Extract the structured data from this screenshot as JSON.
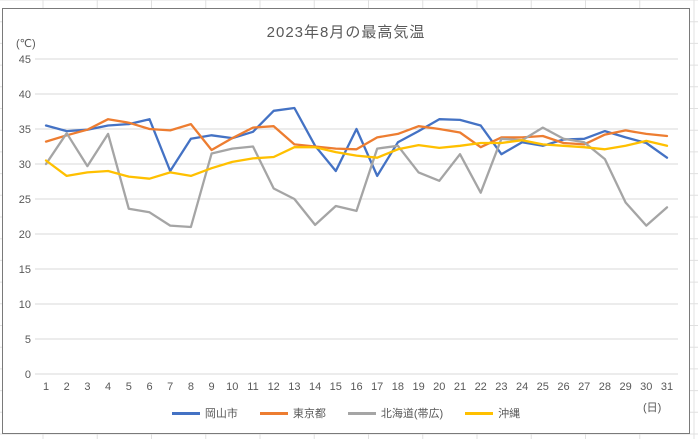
{
  "chart": {
    "title": "2023年8月の最高気温",
    "y_axis_unit": "(℃)",
    "x_axis_unit": "(日)",
    "text_color": "#595959",
    "gridline_color": "#d9d9d9"
  },
  "chart_data": {
    "type": "line",
    "title": "2023年8月の最高気温",
    "ylabel": "(℃)",
    "xlabel": "(日)",
    "ylim": [
      0,
      45
    ],
    "yticks": [
      0,
      5,
      10,
      15,
      20,
      25,
      30,
      35,
      40,
      45
    ],
    "grid": true,
    "legend_position": "bottom",
    "x": [
      1,
      2,
      3,
      4,
      5,
      6,
      7,
      8,
      9,
      10,
      11,
      12,
      13,
      14,
      15,
      16,
      17,
      18,
      19,
      20,
      21,
      22,
      23,
      24,
      25,
      26,
      27,
      28,
      29,
      30,
      31
    ],
    "series": [
      {
        "name": "岡山市",
        "color": "#4472C4",
        "values": [
          35.5,
          34.7,
          34.9,
          35.5,
          35.7,
          36.4,
          29.0,
          33.6,
          34.1,
          33.7,
          34.6,
          37.6,
          38.0,
          32.6,
          29.0,
          35.0,
          28.3,
          33.1,
          34.7,
          36.4,
          36.3,
          35.5,
          31.4,
          33.1,
          32.6,
          33.5,
          33.6,
          34.7,
          33.8,
          33.0,
          30.9
        ]
      },
      {
        "name": "東京都",
        "color": "#ED7D31",
        "values": [
          33.2,
          34.1,
          34.9,
          36.4,
          35.9,
          35.0,
          34.8,
          35.7,
          32.0,
          33.7,
          35.2,
          35.4,
          32.8,
          32.5,
          32.2,
          32.1,
          33.8,
          34.3,
          35.4,
          35.0,
          34.5,
          32.4,
          33.8,
          33.8,
          34.0,
          33.0,
          32.8,
          34.2,
          34.8,
          34.3,
          34.0
        ]
      },
      {
        "name": "北海道(帯広)",
        "color": "#A5A5A5",
        "values": [
          30.0,
          34.4,
          29.7,
          34.3,
          23.6,
          23.1,
          21.2,
          21.0,
          31.5,
          32.2,
          32.5,
          26.5,
          25.0,
          21.3,
          24.0,
          23.3,
          32.2,
          32.6,
          28.8,
          27.6,
          31.4,
          25.9,
          33.6,
          33.4,
          35.2,
          33.6,
          33.1,
          30.7,
          24.5,
          21.2,
          23.8
        ]
      },
      {
        "name": "沖縄",
        "color": "#FFC000",
        "values": [
          30.5,
          28.3,
          28.8,
          29.0,
          28.2,
          27.9,
          28.8,
          28.3,
          29.4,
          30.3,
          30.8,
          31.0,
          32.4,
          32.4,
          31.7,
          31.2,
          30.9,
          32.1,
          32.7,
          32.3,
          32.6,
          33.0,
          33.0,
          33.4,
          32.8,
          32.6,
          32.4,
          32.1,
          32.6,
          33.3,
          32.6
        ]
      }
    ]
  }
}
